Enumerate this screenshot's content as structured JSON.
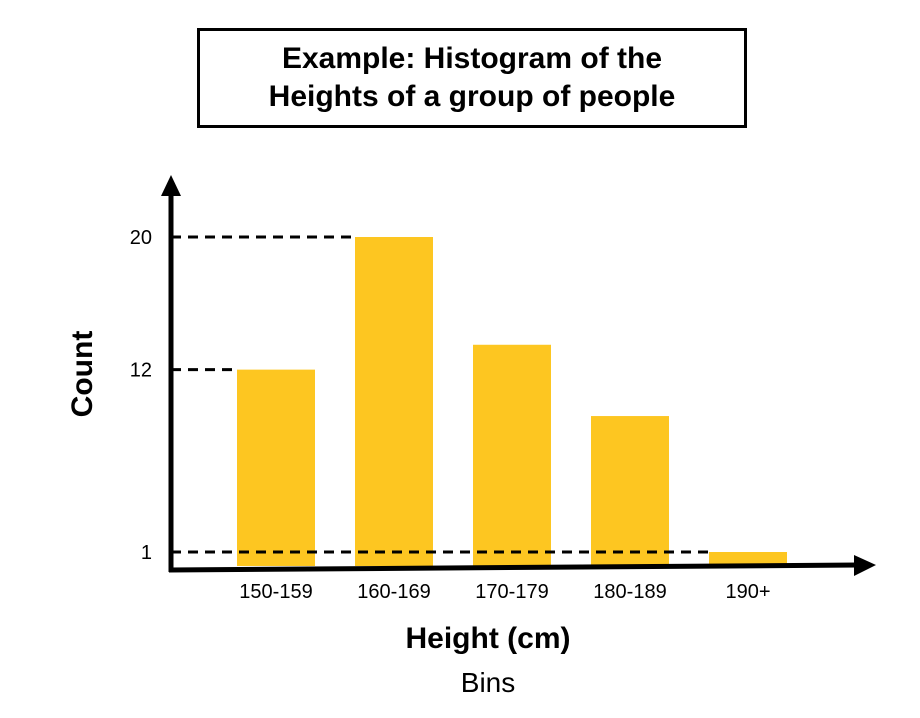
{
  "chart_data": {
    "type": "bar",
    "title_lines": [
      "Example: Histogram of the",
      "Heights of a group of people"
    ],
    "categories": [
      "150-159",
      "160-169",
      "170-179",
      "180-189",
      "190+"
    ],
    "values": [
      12,
      20,
      13.5,
      9.2,
      1
    ],
    "xlabel": "Height (cm)",
    "xsublabel": "Bins",
    "ylabel": "Count",
    "yticks": [
      1,
      12,
      20
    ],
    "bar_color": "#FDC621",
    "grid": false
  }
}
